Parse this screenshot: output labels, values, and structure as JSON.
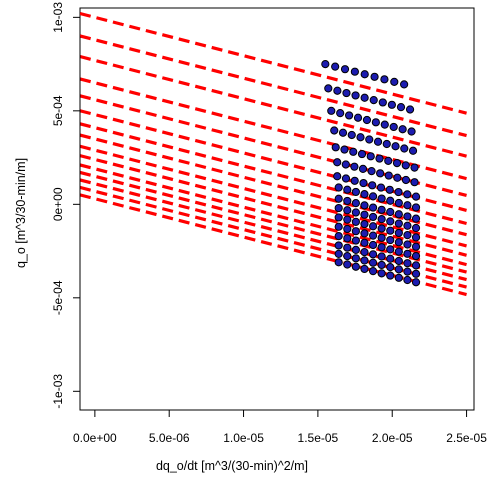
{
  "chart_data": {
    "type": "scatter",
    "title": "",
    "xlabel": "dq_o/dt [m^3/(30-min)^2/m]",
    "ylabel": "q_o [m^3/30-min/m]",
    "xlim": [
      -1e-06,
      2.55e-05
    ],
    "ylim": [
      -0.0011,
      0.00105
    ],
    "x_ticks": [
      0,
      5e-06,
      1e-05,
      1.5e-05,
      2e-05,
      2.5e-05
    ],
    "x_tick_labels": [
      "0.0e+00",
      "5.0e-06",
      "1.0e-05",
      "1.5e-05",
      "2.0e-05",
      "2.5e-05"
    ],
    "y_ticks": [
      -0.001,
      -0.0005,
      0,
      0.0005,
      0.001
    ],
    "y_tick_labels": [
      "-1e-03",
      "-5e-04",
      "0e+00",
      "5e-04",
      "1e-03"
    ],
    "grid": false,
    "legend": "none",
    "dashed_lines": {
      "color": "#ff0000",
      "slope": -20.5,
      "x_range": [
        -1e-06,
        2.5e-05
      ],
      "intercepts": [
        0.001,
        0.00088,
        0.00077,
        0.00065,
        0.00056,
        0.00048,
        0.00041,
        0.00035,
        0.00029,
        0.00024,
        0.00019,
        0.00015,
        0.00011,
        7e-05,
        3e-05
      ]
    },
    "points": {
      "fill": "#1c1cb0",
      "stroke": "#000000",
      "rows": [
        {
          "x0": 1.55e-05,
          "x1": 2.08e-05,
          "n": 9,
          "y_left": 0.00075
        },
        {
          "x0": 1.57e-05,
          "x1": 2.12e-05,
          "n": 10,
          "y_left": 0.00062
        },
        {
          "x0": 1.59e-05,
          "x1": 2.13e-05,
          "n": 10,
          "y_left": 0.0005
        },
        {
          "x0": 1.61e-05,
          "x1": 2.14e-05,
          "n": 10,
          "y_left": 0.000395
        },
        {
          "x0": 1.62e-05,
          "x1": 2.15e-05,
          "n": 10,
          "y_left": 0.000305
        },
        {
          "x0": 1.63e-05,
          "x1": 2.15e-05,
          "n": 10,
          "y_left": 0.000225
        },
        {
          "x0": 1.63e-05,
          "x1": 2.16e-05,
          "n": 10,
          "y_left": 0.00015
        },
        {
          "x0": 1.64e-05,
          "x1": 2.16e-05,
          "n": 10,
          "y_left": 9e-05
        },
        {
          "x0": 1.64e-05,
          "x1": 2.16e-05,
          "n": 10,
          "y_left": 3e-05
        },
        {
          "x0": 1.64e-05,
          "x1": 2.16e-05,
          "n": 10,
          "y_left": -2e-05
        },
        {
          "x0": 1.64e-05,
          "x1": 2.16e-05,
          "n": 10,
          "y_left": -7e-05
        },
        {
          "x0": 1.64e-05,
          "x1": 2.16e-05,
          "n": 10,
          "y_left": -0.00012
        },
        {
          "x0": 1.64e-05,
          "x1": 2.16e-05,
          "n": 10,
          "y_left": -0.00017
        },
        {
          "x0": 1.64e-05,
          "x1": 2.16e-05,
          "n": 10,
          "y_left": -0.00022
        },
        {
          "x0": 1.64e-05,
          "x1": 2.16e-05,
          "n": 10,
          "y_left": -0.000265
        },
        {
          "x0": 1.64e-05,
          "x1": 2.16e-05,
          "n": 10,
          "y_left": -0.00031
        }
      ]
    }
  }
}
